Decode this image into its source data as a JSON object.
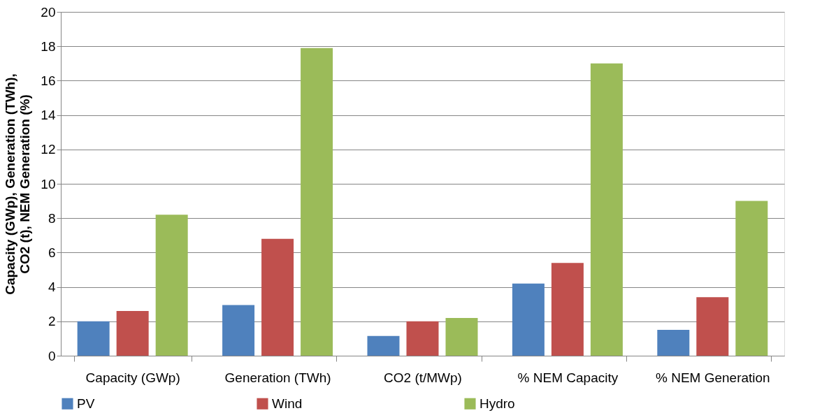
{
  "chart_data": {
    "type": "bar",
    "ylabel": "Capacity (GWp), Generation (TWh),\nCO2 (t), NEM Generation (%)",
    "categories": [
      "Capacity (GWp)",
      "Generation (TWh)",
      "CO2 (t/MWp)",
      "% NEM Capacity",
      "% NEM Generation"
    ],
    "series": [
      {
        "name": "PV",
        "color": "#4f81bd",
        "values": [
          2.0,
          2.95,
          1.15,
          4.2,
          1.5
        ]
      },
      {
        "name": "Wind",
        "color": "#c0504d",
        "values": [
          2.6,
          6.8,
          2.0,
          5.4,
          3.4
        ]
      },
      {
        "name": "Hydro",
        "color": "#9bbb59",
        "values": [
          8.2,
          17.9,
          2.2,
          17.0,
          9.0
        ]
      }
    ],
    "ylim": [
      0,
      20
    ],
    "yticks": [
      0,
      2,
      4,
      6,
      8,
      10,
      12,
      14,
      16,
      18,
      20
    ],
    "grid": "y",
    "legend": "bottom"
  }
}
